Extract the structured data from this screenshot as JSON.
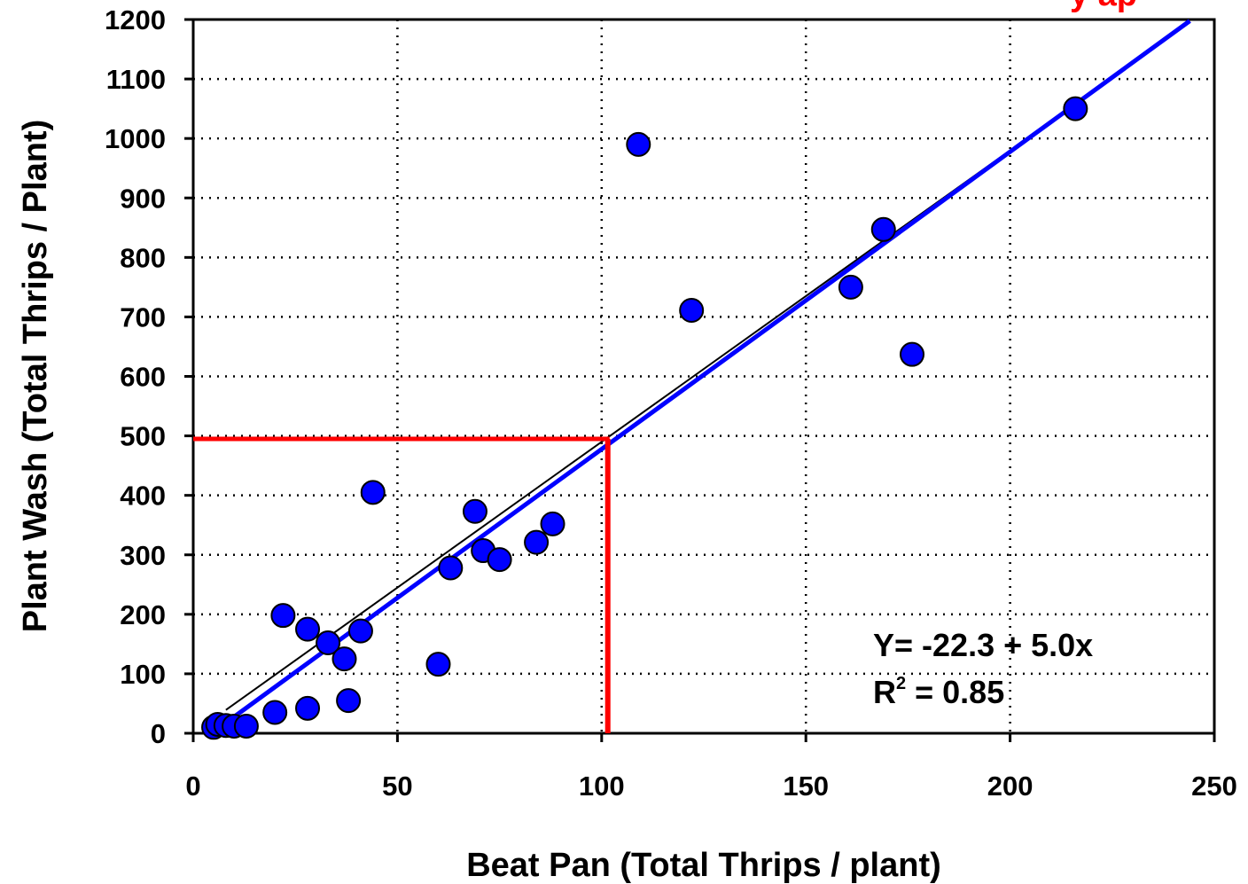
{
  "chart_data": {
    "type": "scatter",
    "title_fragment": "y ap",
    "xlabel": "Beat Pan  (Total Thrips / plant)",
    "ylabel": "Plant Wash (Total Thrips / Plant)",
    "xlim": [
      0,
      250
    ],
    "ylim": [
      0,
      1200
    ],
    "xticks": [
      0,
      50,
      100,
      150,
      200,
      250
    ],
    "yticks": [
      0,
      100,
      200,
      300,
      400,
      500,
      600,
      700,
      800,
      900,
      1000,
      1100,
      1200
    ],
    "grid": "dotted",
    "marker_color": "#0000ff",
    "regression_color": "#0000ff",
    "reference_line_color": "#000000",
    "threshold_color": "#ff0000",
    "points": [
      {
        "x": 5,
        "y": 10
      },
      {
        "x": 6,
        "y": 15
      },
      {
        "x": 8,
        "y": 13
      },
      {
        "x": 10,
        "y": 12
      },
      {
        "x": 13,
        "y": 12
      },
      {
        "x": 20,
        "y": 35
      },
      {
        "x": 22,
        "y": 198
      },
      {
        "x": 28,
        "y": 175
      },
      {
        "x": 28,
        "y": 42
      },
      {
        "x": 33,
        "y": 152
      },
      {
        "x": 37,
        "y": 125
      },
      {
        "x": 38,
        "y": 55
      },
      {
        "x": 41,
        "y": 172
      },
      {
        "x": 44,
        "y": 405
      },
      {
        "x": 60,
        "y": 116
      },
      {
        "x": 63,
        "y": 278
      },
      {
        "x": 69,
        "y": 373
      },
      {
        "x": 71,
        "y": 307
      },
      {
        "x": 75,
        "y": 292
      },
      {
        "x": 84,
        "y": 321
      },
      {
        "x": 88,
        "y": 352
      },
      {
        "x": 109,
        "y": 990
      },
      {
        "x": 122,
        "y": 711
      },
      {
        "x": 161,
        "y": 750
      },
      {
        "x": 169,
        "y": 847
      },
      {
        "x": 176,
        "y": 637
      },
      {
        "x": 216,
        "y": 1050
      }
    ],
    "regression": {
      "intercept": -22.3,
      "slope": 5.0,
      "x_range": [
        10,
        244
      ]
    },
    "reference_line": {
      "intercept": 0,
      "slope": 4.9,
      "x_range": [
        8,
        244
      ]
    },
    "threshold": {
      "x": 101.5,
      "y": 495
    },
    "equation_text": "Y= -22.3 + 5.0x",
    "r2_text_prefix": "R",
    "r2_text_sup": "2",
    "r2_text_suffix": " = 0.85"
  }
}
